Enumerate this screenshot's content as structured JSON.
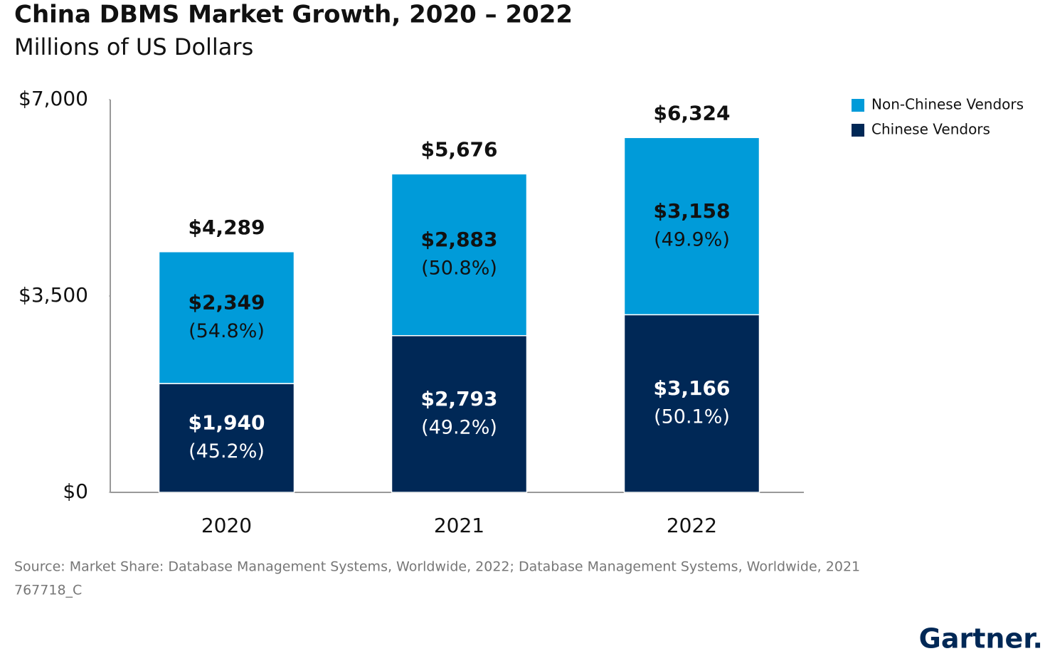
{
  "chart_data": {
    "type": "stacked_bar",
    "title": "China DBMS Market Growth, 2020 – 2022",
    "subtitle": "Millions of US Dollars",
    "categories": [
      "2020",
      "2021",
      "2022"
    ],
    "series": [
      {
        "name": "Chinese Vendors",
        "color": "#002856",
        "values": [
          1940,
          2793,
          3166
        ],
        "value_labels": [
          "$1,940",
          "$2,793",
          "$3,166"
        ],
        "percent_labels": [
          "(45.2%)",
          "(49.2%)",
          "(50.1%)"
        ]
      },
      {
        "name": "Non-Chinese Vendors",
        "color": "#009bd9",
        "values": [
          2349,
          2883,
          3158
        ],
        "value_labels": [
          "$2,349",
          "$2,883",
          "$3,158"
        ],
        "percent_labels": [
          "(54.8%)",
          "(50.8%)",
          "(49.9%)"
        ]
      }
    ],
    "totals": [
      4289,
      5676,
      6324
    ],
    "total_labels": [
      "$4,289",
      "$5,676",
      "$6,324"
    ],
    "ylim": [
      0,
      7000
    ],
    "yticks": [
      {
        "value": 0,
        "label": "$0"
      },
      {
        "value": 3500,
        "label": "$3,500"
      },
      {
        "value": 7000,
        "label": "$7,000"
      }
    ],
    "legend": "top-right",
    "source": "Source: Market Share: Database Management Systems, Worldwide, 2022; Database Management Systems, Worldwide, 2021",
    "note": "767718_C",
    "brand": "Gartner."
  }
}
